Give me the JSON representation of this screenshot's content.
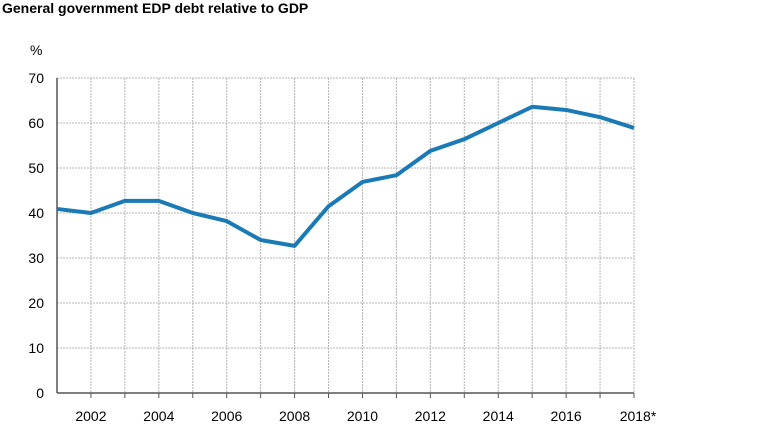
{
  "chart_data": {
    "type": "line",
    "title": "General government EDP debt relative to GDP",
    "xlabel": "",
    "ylabel": "%",
    "ylim": [
      0,
      70
    ],
    "yticks": [
      0,
      10,
      20,
      30,
      40,
      50,
      60,
      70
    ],
    "xlim": [
      2001,
      2018
    ],
    "xtick_labels": [
      "2002",
      "2004",
      "2006",
      "2008",
      "2010",
      "2012",
      "2014",
      "2016",
      "2018*"
    ],
    "xtick_values": [
      2002,
      2004,
      2006,
      2008,
      2010,
      2012,
      2014,
      2016,
      2018
    ],
    "grid": true,
    "legend": "none",
    "series": [
      {
        "name": "EDP debt",
        "color": "#1a7ab5",
        "x": [
          2001,
          2002,
          2003,
          2004,
          2005,
          2006,
          2007,
          2008,
          2009,
          2010,
          2011,
          2012,
          2013,
          2014,
          2015,
          2016,
          2017,
          2018
        ],
        "values": [
          40.9,
          40.0,
          42.7,
          42.7,
          40.0,
          38.2,
          34.0,
          32.7,
          41.5,
          46.9,
          48.4,
          53.8,
          56.4,
          60.0,
          63.6,
          62.9,
          61.3,
          58.9
        ]
      }
    ]
  }
}
